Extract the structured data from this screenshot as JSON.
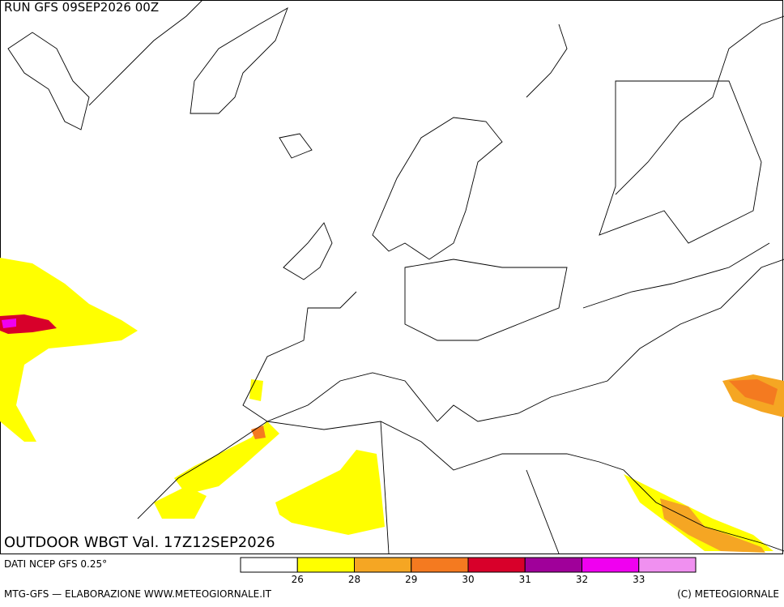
{
  "header": {
    "run": "RUN GFS 09SEP2026 00Z"
  },
  "map": {
    "title": "OUTDOOR WBGT Val. 17Z12SEP2026"
  },
  "legend": {
    "colors": [
      "#ffffff",
      "#ffff00",
      "#f5a623",
      "#f47a20",
      "#d8002a",
      "#a0009a",
      "#f000f0",
      "#f090f0"
    ],
    "labels": [
      26,
      28,
      29,
      30,
      31,
      32,
      33
    ]
  },
  "footer": {
    "source": "DATI NCEP GFS 0.25°",
    "credits": "MTG-GFS — ELABORAZIONE WWW.METEOGIORNALE.IT",
    "copyright": "(C) METEOGIORNALE"
  }
}
